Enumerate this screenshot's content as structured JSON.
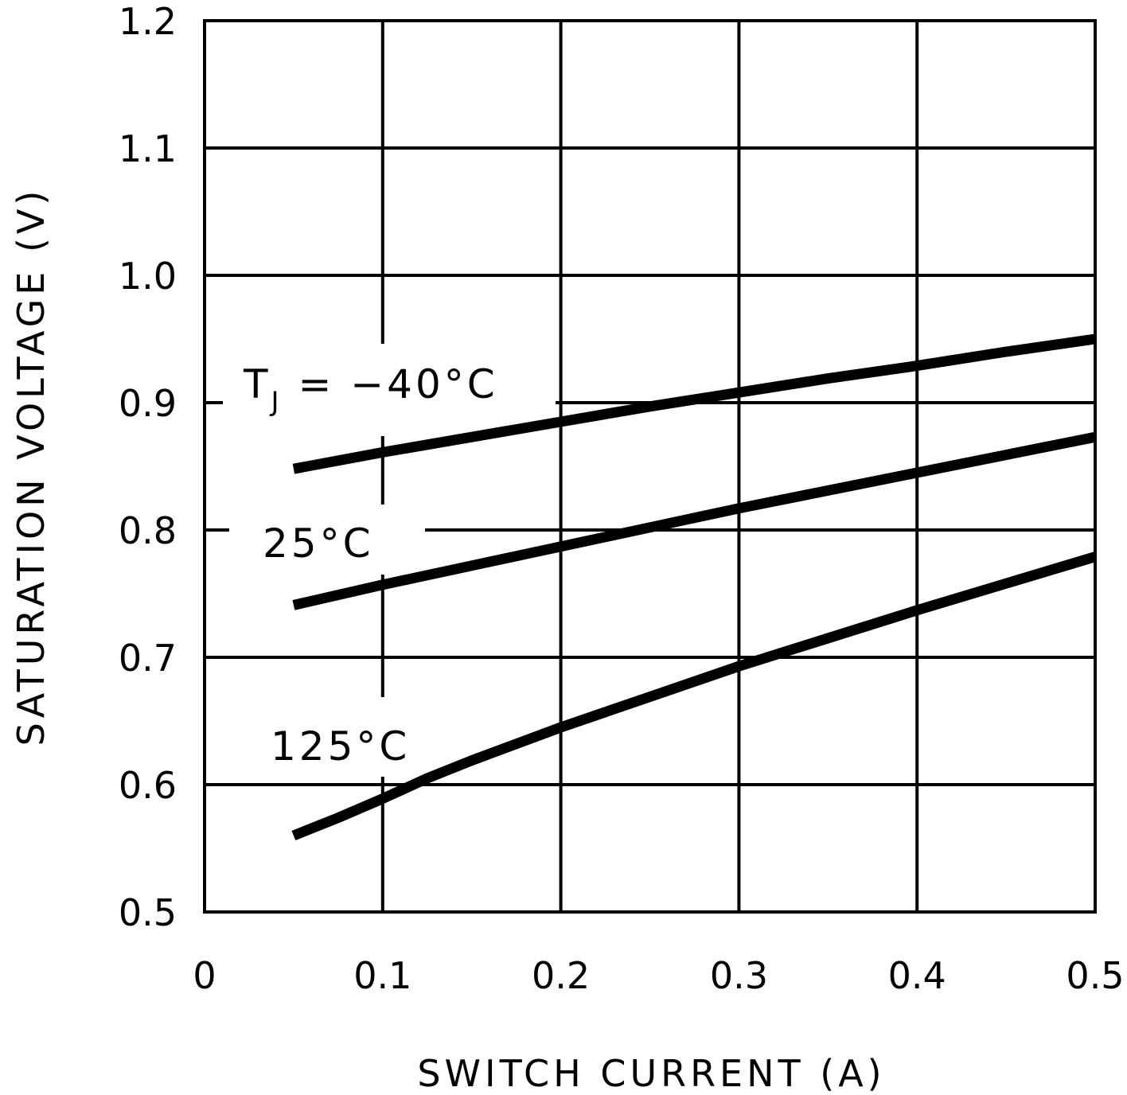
{
  "chart_data": {
    "type": "line",
    "title": "",
    "xlabel": "SWITCH CURRENT (A)",
    "ylabel": "SATURATION VOLTAGE (V)",
    "xlim": [
      0,
      0.5
    ],
    "ylim": [
      0.5,
      1.2
    ],
    "xticks": [
      "0",
      "0.1",
      "0.2",
      "0.3",
      "0.4",
      "0.5"
    ],
    "yticks": [
      "0.5",
      "0.6",
      "0.7",
      "0.8",
      "0.9",
      "1.0",
      "1.1",
      "1.2"
    ],
    "grid": true,
    "legend": "none",
    "series": [
      {
        "name": "TJ = −40°C",
        "label_main": "T",
        "label_sub": "J",
        "label_rest": " = −40°C",
        "x": [
          0.05,
          0.1,
          0.15,
          0.2,
          0.25,
          0.3,
          0.35,
          0.4,
          0.45,
          0.5
        ],
        "y": [
          0.848,
          0.861,
          0.873,
          0.885,
          0.897,
          0.908,
          0.919,
          0.929,
          0.94,
          0.95
        ]
      },
      {
        "name": "25°C",
        "label": "25°C",
        "x": [
          0.05,
          0.1,
          0.15,
          0.2,
          0.25,
          0.3,
          0.35,
          0.4,
          0.45,
          0.5
        ],
        "y": [
          0.741,
          0.757,
          0.772,
          0.787,
          0.802,
          0.817,
          0.831,
          0.845,
          0.859,
          0.873
        ]
      },
      {
        "name": "125°C",
        "label": "125°C",
        "x": [
          0.05,
          0.075,
          0.1,
          0.125,
          0.15,
          0.2,
          0.25,
          0.3,
          0.35,
          0.4,
          0.45,
          0.5
        ],
        "y": [
          0.56,
          0.574,
          0.589,
          0.605,
          0.619,
          0.645,
          0.669,
          0.693,
          0.715,
          0.737,
          0.758,
          0.779
        ]
      }
    ]
  }
}
